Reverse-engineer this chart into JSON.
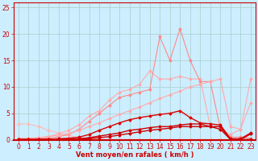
{
  "bg_color": "#cceeff",
  "grid_color": "#aacccc",
  "xlabel": "Vent moyen/en rafales ( km/h )",
  "xlabel_color": "#cc0000",
  "xlim": [
    -0.5,
    23.5
  ],
  "ylim": [
    0,
    26
  ],
  "xticks": [
    0,
    1,
    2,
    3,
    4,
    5,
    6,
    7,
    8,
    9,
    10,
    11,
    12,
    13,
    14,
    15,
    16,
    17,
    18,
    19,
    20,
    21,
    22,
    23
  ],
  "yticks": [
    0,
    5,
    10,
    15,
    20,
    25
  ],
  "tick_color": "#cc0000",
  "font_size": 5.5,
  "lines": [
    {
      "x": [
        0,
        1,
        2,
        3,
        4,
        5,
        6,
        7,
        8,
        9,
        10,
        11,
        12,
        13,
        14,
        15,
        16,
        17,
        18,
        19,
        20,
        21,
        22,
        23
      ],
      "y": [
        3.0,
        3.0,
        2.5,
        1.8,
        1.3,
        0.8,
        0.4,
        0.15,
        0.1,
        0.05,
        0.05,
        0.05,
        0.05,
        0.05,
        0.05,
        0.05,
        0.05,
        0.05,
        0.05,
        0.05,
        0.05,
        0.05,
        0.05,
        0.05
      ],
      "color": "#ffbbbb",
      "lw": 0.8,
      "marker": "D",
      "ms": 1.5
    },
    {
      "x": [
        0,
        1,
        2,
        3,
        4,
        5,
        6,
        7,
        8,
        9,
        10,
        11,
        12,
        13,
        14,
        15,
        16,
        17,
        18,
        19,
        20,
        21,
        22,
        23
      ],
      "y": [
        0.3,
        0.3,
        0.4,
        0.6,
        1.2,
        1.8,
        2.8,
        4.5,
        5.5,
        7.5,
        9.0,
        9.5,
        10.5,
        13.0,
        11.5,
        11.5,
        12.0,
        11.5,
        11.5,
        2.5,
        2.0,
        1.0,
        2.0,
        7.0
      ],
      "color": "#ffaaaa",
      "lw": 0.8,
      "marker": "D",
      "ms": 1.5
    },
    {
      "x": [
        0,
        1,
        2,
        3,
        4,
        5,
        6,
        7,
        8,
        9,
        10,
        11,
        12,
        13,
        14,
        15,
        16,
        17,
        18,
        19,
        20,
        21,
        22,
        23
      ],
      "y": [
        0.1,
        0.1,
        0.2,
        0.3,
        0.6,
        1.0,
        2.0,
        3.5,
        5.0,
        6.5,
        8.0,
        8.5,
        9.0,
        9.5,
        19.5,
        15.0,
        21.0,
        15.0,
        11.0,
        11.0,
        2.0,
        0.5,
        0.5,
        0.3
      ],
      "color": "#ff8888",
      "lw": 0.8,
      "marker": "D",
      "ms": 1.5
    },
    {
      "x": [
        0,
        1,
        2,
        3,
        4,
        5,
        6,
        7,
        8,
        9,
        10,
        11,
        12,
        13,
        14,
        15,
        16,
        17,
        18,
        19,
        20,
        21,
        22,
        23
      ],
      "y": [
        0.1,
        0.2,
        0.4,
        0.6,
        0.9,
        1.2,
        1.8,
        2.5,
        3.2,
        4.0,
        4.8,
        5.5,
        6.2,
        7.0,
        7.8,
        8.5,
        9.2,
        10.0,
        10.5,
        11.0,
        11.5,
        2.5,
        2.0,
        11.5
      ],
      "color": "#ffaaaa",
      "lw": 0.8,
      "marker": "D",
      "ms": 1.5
    },
    {
      "x": [
        0,
        1,
        2,
        3,
        4,
        5,
        6,
        7,
        8,
        9,
        10,
        11,
        12,
        13,
        14,
        15,
        16,
        17,
        18,
        19,
        20,
        21,
        22,
        23
      ],
      "y": [
        0.05,
        0.05,
        0.1,
        0.1,
        0.2,
        0.3,
        0.5,
        1.0,
        1.8,
        2.5,
        3.2,
        3.8,
        4.2,
        4.5,
        4.8,
        5.0,
        5.5,
        4.2,
        3.2,
        3.0,
        2.8,
        0.2,
        0.2,
        1.3
      ],
      "color": "#dd0000",
      "lw": 1.0,
      "marker": "D",
      "ms": 1.5
    },
    {
      "x": [
        0,
        1,
        2,
        3,
        4,
        5,
        6,
        7,
        8,
        9,
        10,
        11,
        12,
        13,
        14,
        15,
        16,
        17,
        18,
        19,
        20,
        21,
        22,
        23
      ],
      "y": [
        0.05,
        0.05,
        0.05,
        0.1,
        0.1,
        0.15,
        0.2,
        0.4,
        0.7,
        1.0,
        1.3,
        1.8,
        2.0,
        2.3,
        2.5,
        2.5,
        2.8,
        3.0,
        3.0,
        2.5,
        2.5,
        0.1,
        0.05,
        1.1
      ],
      "color": "#cc0000",
      "lw": 1.0,
      "marker": "D",
      "ms": 1.5
    },
    {
      "x": [
        0,
        1,
        2,
        3,
        4,
        5,
        6,
        7,
        8,
        9,
        10,
        11,
        12,
        13,
        14,
        15,
        16,
        17,
        18,
        19,
        20,
        21,
        22,
        23
      ],
      "y": [
        0.05,
        0.05,
        0.05,
        0.05,
        0.05,
        0.1,
        0.15,
        0.25,
        0.4,
        0.6,
        0.9,
        1.2,
        1.5,
        1.8,
        2.0,
        2.2,
        2.5,
        2.5,
        2.5,
        2.5,
        2.0,
        0.05,
        0.05,
        0.05
      ],
      "color": "#cc0000",
      "lw": 1.0,
      "marker": "D",
      "ms": 1.5
    }
  ]
}
